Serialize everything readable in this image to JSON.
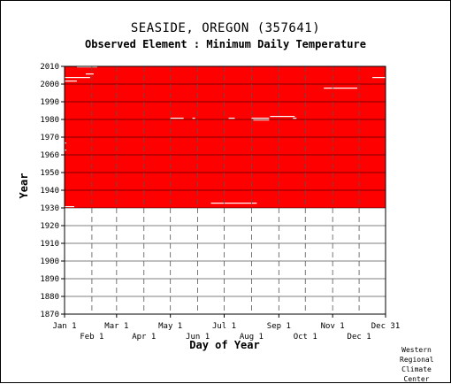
{
  "title": "SEASIDE, OREGON   (357641)",
  "subtitle": "Observed Element : Minimum Daily Temperature",
  "credit": [
    "Western",
    "Regional",
    "Climate",
    "Center"
  ],
  "chart_data": {
    "type": "heatmap",
    "description_of_marks": "Red fill indicates days with observed data; white gaps indicate missing observations.",
    "xlabel": "Day of Year",
    "ylabel": "Year",
    "xlim_day_of_year": [
      1,
      365
    ],
    "ylim": [
      1870,
      2010
    ],
    "x_ticks_top_row": [
      "Jan 1",
      "Mar 1",
      "May 1",
      "Jul 1",
      "Sep 1",
      "Nov 1",
      "Dec 31"
    ],
    "x_ticks_bottom_row": [
      "Feb 1",
      "Apr 1",
      "Jun 1",
      "Aug 1",
      "Oct 1",
      "Dec 1"
    ],
    "y_ticks": [
      1870,
      1880,
      1890,
      1900,
      1910,
      1920,
      1930,
      1940,
      1950,
      1960,
      1970,
      1980,
      1990,
      2000,
      2010
    ],
    "data_period_years": [
      1930,
      2010
    ],
    "data_color": "#ff0000",
    "grid": true,
    "missing_segments": [
      {
        "year": 1930,
        "start_day": 1,
        "end_day": 12
      },
      {
        "year": 1932,
        "start_day": 167,
        "end_day": 219
      },
      {
        "year": 1962,
        "start_day": 1,
        "end_day": 3
      },
      {
        "year": 1966,
        "start_day": 1,
        "end_day": 3
      },
      {
        "year": 1980,
        "start_day": 121,
        "end_day": 136
      },
      {
        "year": 1980,
        "start_day": 146,
        "end_day": 149
      },
      {
        "year": 1980,
        "start_day": 187,
        "end_day": 194
      },
      {
        "year": 1980,
        "start_day": 213,
        "end_day": 233
      },
      {
        "year": 1979,
        "start_day": 215,
        "end_day": 233
      },
      {
        "year": 1980,
        "start_day": 260,
        "end_day": 264
      },
      {
        "year": 1981,
        "start_day": 234,
        "end_day": 262
      },
      {
        "year": 1997,
        "start_day": 295,
        "end_day": 333
      },
      {
        "year": 2001,
        "start_day": 1,
        "end_day": 15
      },
      {
        "year": 2003,
        "start_day": 1,
        "end_day": 30
      },
      {
        "year": 2003,
        "start_day": 350,
        "end_day": 365
      },
      {
        "year": 2005,
        "start_day": 25,
        "end_day": 34
      },
      {
        "year": 2009,
        "start_day": 15,
        "end_day": 38
      },
      {
        "year": 2010,
        "start_day": 213,
        "end_day": 282
      },
      {
        "year": 2010,
        "start_day": 316,
        "end_day": 352
      }
    ]
  }
}
